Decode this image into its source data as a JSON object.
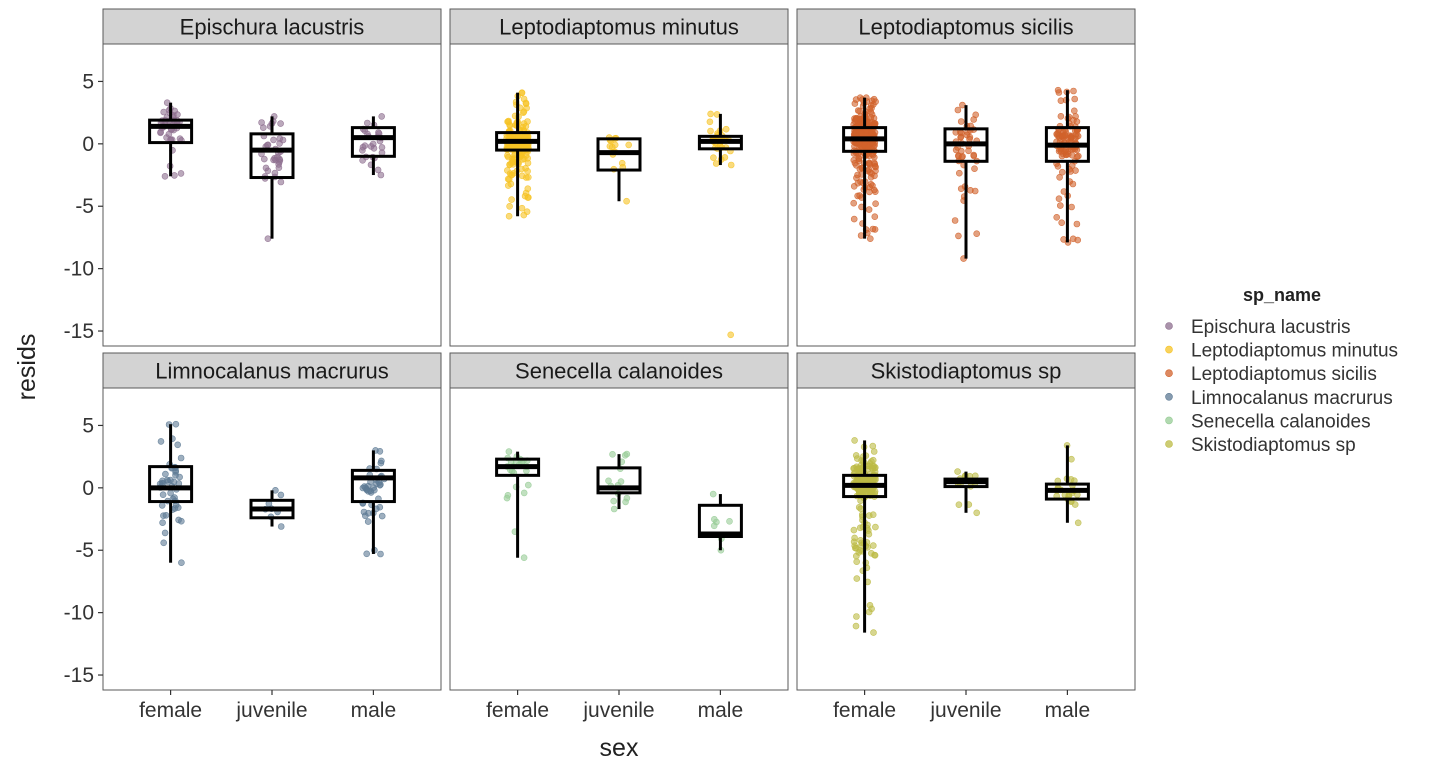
{
  "chart_data": {
    "type": "boxplot",
    "title": "",
    "xlabel": "sex",
    "ylabel": "resids",
    "x_categories": [
      "female",
      "juvenile",
      "male"
    ],
    "y_ticks": [
      5,
      0,
      -5,
      -10,
      -15
    ],
    "y_tick_labels": [
      "5",
      "0",
      "-5",
      "-10",
      "-15"
    ],
    "ylim": [
      -16.2,
      8
    ],
    "legend": {
      "title": "sp_name",
      "position": "right",
      "items": [
        {
          "label": "Epischura lacustris",
          "color": "#8e6f8f"
        },
        {
          "label": "Leptodiaptomus minutus",
          "color": "#f6c325"
        },
        {
          "label": "Leptodiaptomus sicilis",
          "color": "#d1622c"
        },
        {
          "label": "Limnocalanus macrurus",
          "color": "#5d7a94"
        },
        {
          "label": "Senecella calanoides",
          "color": "#97cc96"
        },
        {
          "label": "Skistodiaptomus sp",
          "color": "#bcbb45"
        }
      ]
    },
    "panels": [
      {
        "title": "Epischura lacustris",
        "color": "#8e6f8f",
        "groups": [
          {
            "category": "female",
            "min": -2.6,
            "q1": 0.1,
            "median": 1.4,
            "q3": 1.9,
            "max": 3.3,
            "n": 40,
            "outliers": []
          },
          {
            "category": "juvenile",
            "min": -7.6,
            "q1": -2.7,
            "median": -0.5,
            "q3": 0.8,
            "max": 2.2,
            "n": 35,
            "outliers": []
          },
          {
            "category": "male",
            "min": -2.5,
            "q1": -1.0,
            "median": 0.5,
            "q3": 1.3,
            "max": 2.2,
            "n": 25,
            "outliers": []
          }
        ]
      },
      {
        "title": "Leptodiaptomus minutus",
        "color": "#f6c325",
        "groups": [
          {
            "category": "female",
            "min": -5.8,
            "q1": -0.5,
            "median": 0.2,
            "q3": 0.9,
            "max": 4.1,
            "n": 220,
            "outliers": []
          },
          {
            "category": "juvenile",
            "min": -4.6,
            "q1": -2.1,
            "median": -0.7,
            "q3": 0.4,
            "max": 0.5,
            "n": 14,
            "outliers": []
          },
          {
            "category": "male",
            "min": -1.7,
            "q1": -0.4,
            "median": 0.2,
            "q3": 0.6,
            "max": 2.4,
            "n": 30,
            "outliers": [
              -15.3
            ]
          }
        ]
      },
      {
        "title": "Leptodiaptomus sicilis",
        "color": "#d1622c",
        "groups": [
          {
            "category": "female",
            "min": -7.6,
            "q1": -0.6,
            "median": 0.4,
            "q3": 1.3,
            "max": 3.7,
            "n": 300,
            "outliers": []
          },
          {
            "category": "juvenile",
            "min": -9.2,
            "q1": -1.4,
            "median": 0.0,
            "q3": 1.2,
            "max": 3.1,
            "n": 45,
            "outliers": []
          },
          {
            "category": "male",
            "min": -7.9,
            "q1": -1.4,
            "median": -0.1,
            "q3": 1.3,
            "max": 4.3,
            "n": 110,
            "outliers": []
          }
        ]
      },
      {
        "title": "Limnocalanus macrurus",
        "color": "#5d7a94",
        "groups": [
          {
            "category": "female",
            "min": -6.0,
            "q1": -1.1,
            "median": 0.0,
            "q3": 1.7,
            "max": 5.1,
            "n": 45,
            "outliers": []
          },
          {
            "category": "juvenile",
            "min": -3.1,
            "q1": -2.4,
            "median": -1.7,
            "q3": -1.0,
            "max": -0.2,
            "n": 6,
            "outliers": []
          },
          {
            "category": "male",
            "min": -5.3,
            "q1": -1.1,
            "median": 0.8,
            "q3": 1.4,
            "max": 3.0,
            "n": 40,
            "outliers": []
          }
        ]
      },
      {
        "title": "Senecella calanoides",
        "color": "#97cc96",
        "groups": [
          {
            "category": "female",
            "min": -5.6,
            "q1": 1.0,
            "median": 1.7,
            "q3": 2.3,
            "max": 2.9,
            "n": 22,
            "outliers": []
          },
          {
            "category": "juvenile",
            "min": -1.7,
            "q1": -0.4,
            "median": 0.0,
            "q3": 1.6,
            "max": 2.7,
            "n": 12,
            "outliers": []
          },
          {
            "category": "male",
            "min": -5.0,
            "q1": -3.9,
            "median": -3.7,
            "q3": -1.4,
            "max": -0.5,
            "n": 5,
            "outliers": []
          }
        ]
      },
      {
        "title": "Skistodiaptomus sp",
        "color": "#bcbb45",
        "groups": [
          {
            "category": "female",
            "min": -11.6,
            "q1": -0.7,
            "median": 0.2,
            "q3": 1.0,
            "max": 3.8,
            "n": 200,
            "outliers": []
          },
          {
            "category": "juvenile",
            "min": -2.0,
            "q1": 0.1,
            "median": 0.5,
            "q3": 0.7,
            "max": 1.3,
            "n": 14,
            "outliers": []
          },
          {
            "category": "male",
            "min": -2.8,
            "q1": -0.9,
            "median": -0.2,
            "q3": 0.3,
            "max": 3.4,
            "n": 22,
            "outliers": []
          }
        ]
      }
    ]
  }
}
